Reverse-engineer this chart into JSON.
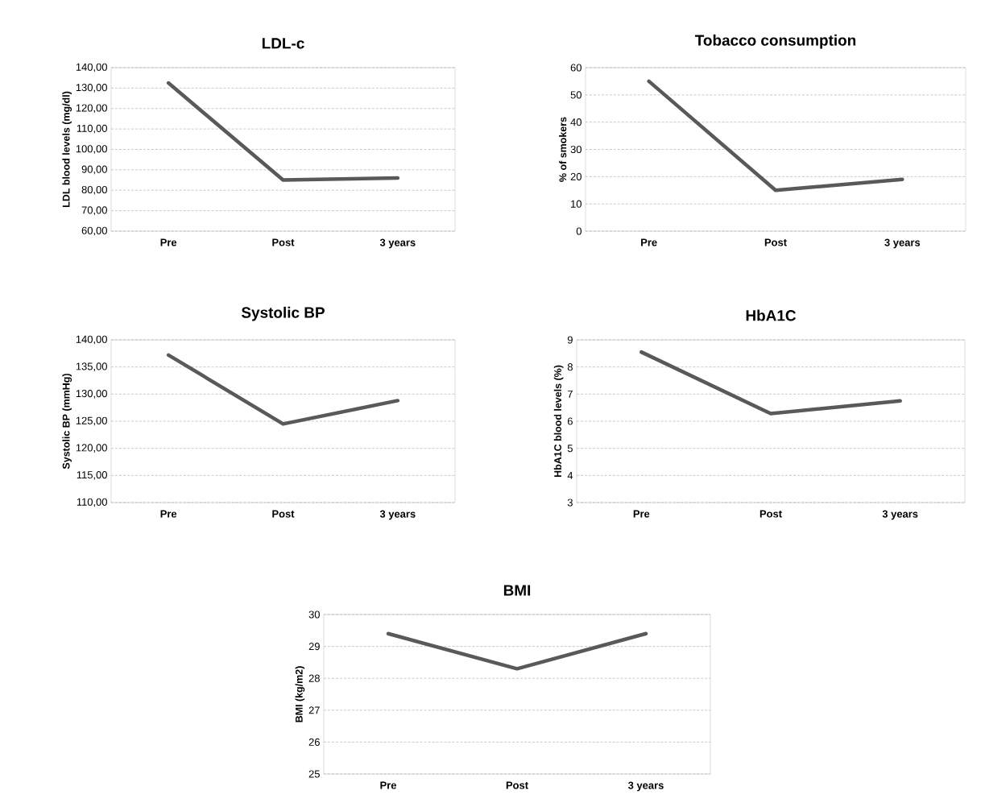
{
  "chart_data": [
    {
      "type": "line",
      "title": "LDL-c",
      "ylabel": "LDL blood levels (mg/dl)",
      "categories": [
        "Pre",
        "Post",
        "3 years"
      ],
      "values": [
        132.5,
        85,
        86
      ],
      "color": "#595959",
      "ylim": [
        60,
        140
      ],
      "yticks": [
        {
          "value": 60,
          "label": "60,00"
        },
        {
          "value": 70,
          "label": "70,00"
        },
        {
          "value": 80,
          "label": "80,00"
        },
        {
          "value": 90,
          "label": "90,00"
        },
        {
          "value": 100,
          "label": "100,00"
        },
        {
          "value": 110,
          "label": "110,00"
        },
        {
          "value": 120,
          "label": "120,00"
        },
        {
          "value": 130,
          "label": "130,00"
        },
        {
          "value": 140,
          "label": "140,00"
        }
      ],
      "grid": "y"
    },
    {
      "type": "line",
      "title": "Tobacco consumption",
      "ylabel": "% of smokers",
      "categories": [
        "Pre",
        "Post",
        "3 years"
      ],
      "values": [
        55,
        15,
        19
      ],
      "color": "#595959",
      "ylim": [
        0,
        60
      ],
      "yticks": [
        0,
        10,
        20,
        30,
        40,
        50,
        60
      ],
      "grid": "y"
    },
    {
      "type": "line",
      "title": "Systolic BP",
      "ylabel": "Systolic BP (mmHg)",
      "categories": [
        "Pre",
        "Post",
        "3 years"
      ],
      "values": [
        137.2,
        124.5,
        128.8
      ],
      "color": "#595959",
      "ylim": [
        110,
        140
      ],
      "yticks": [
        {
          "value": 110,
          "label": "110,00"
        },
        {
          "value": 115,
          "label": "115,00"
        },
        {
          "value": 120,
          "label": "120,00"
        },
        {
          "value": 125,
          "label": "125,00"
        },
        {
          "value": 130,
          "label": "130,00"
        },
        {
          "value": 135,
          "label": "135,00"
        },
        {
          "value": 140,
          "label": "140,00"
        }
      ],
      "grid": "y"
    },
    {
      "type": "line",
      "title": "HbA1C",
      "ylabel": "HbA1C blood levels (%)",
      "categories": [
        "Pre",
        "Post",
        "3 years"
      ],
      "values": [
        8.55,
        6.28,
        6.75
      ],
      "color": "#595959",
      "ylim": [
        3,
        9
      ],
      "yticks": [
        3,
        4,
        5,
        6,
        7,
        8,
        9
      ],
      "grid": "y"
    },
    {
      "type": "line",
      "title": "BMI",
      "ylabel": "BMI (kg/m2)",
      "categories": [
        "Pre",
        "Post",
        "3 years"
      ],
      "values": [
        29.4,
        28.3,
        29.4
      ],
      "color": "#595959",
      "ylim": [
        25,
        30
      ],
      "yticks": [
        25,
        26,
        27,
        28,
        29,
        30
      ],
      "grid": "y"
    }
  ]
}
